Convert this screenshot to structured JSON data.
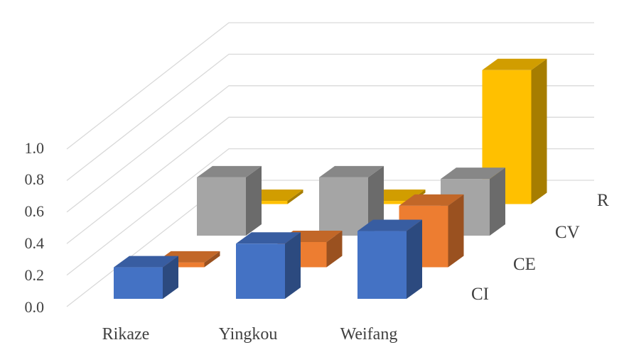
{
  "chart_data": {
    "type": "bar",
    "variant": "3d-column",
    "title": "",
    "xlabel": "",
    "ylabel": "",
    "categories": [
      "Rikaze",
      "Yingkou",
      "Weifang"
    ],
    "series": [
      {
        "name": "CI",
        "values": [
          0.2,
          0.35,
          0.43
        ],
        "color": "#4472C4"
      },
      {
        "name": "CE",
        "values": [
          0.03,
          0.16,
          0.39
        ],
        "color": "#ED7D31"
      },
      {
        "name": "CV",
        "values": [
          0.37,
          0.37,
          0.36
        ],
        "color": "#A5A5A5"
      },
      {
        "name": "R",
        "values": [
          0.02,
          0.02,
          0.85
        ],
        "color": "#FFC000"
      }
    ],
    "ylim": [
      0,
      1
    ],
    "yticks": [
      "0.0",
      "0.2",
      "0.4",
      "0.6",
      "0.8",
      "1.0"
    ],
    "grid": true,
    "legend": "none"
  }
}
